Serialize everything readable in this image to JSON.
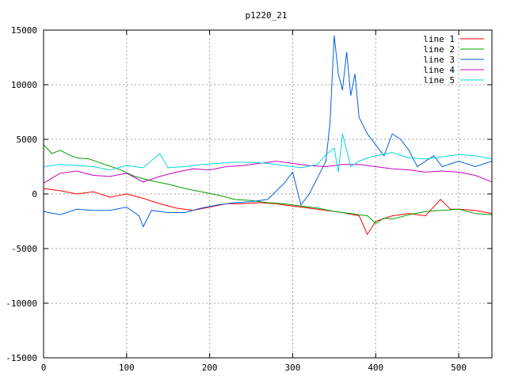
{
  "chart_data": {
    "type": "line",
    "title": "p1220_21",
    "xlabel": "",
    "ylabel": "",
    "xlim": [
      0,
      540
    ],
    "ylim": [
      -15000,
      15000
    ],
    "x_ticks": [
      0,
      100,
      200,
      300,
      400,
      500
    ],
    "y_ticks": [
      -15000,
      -10000,
      -5000,
      0,
      5000,
      10000,
      15000
    ],
    "x_tick_labels": [
      "0",
      "100",
      "200",
      "300",
      "400",
      "500"
    ],
    "y_tick_labels": [
      "-15000",
      "-10000",
      "-5000",
      "0",
      "5000",
      "10000",
      "15000"
    ],
    "grid": true,
    "legend_position": "top-right",
    "series": [
      {
        "name": "line 1",
        "color": "#ff0000",
        "points": [
          [
            0,
            500
          ],
          [
            20,
            300
          ],
          [
            40,
            0
          ],
          [
            60,
            200
          ],
          [
            80,
            -300
          ],
          [
            100,
            0
          ],
          [
            120,
            -400
          ],
          [
            140,
            -900
          ],
          [
            160,
            -1300
          ],
          [
            180,
            -1500
          ],
          [
            200,
            -1200
          ],
          [
            220,
            -900
          ],
          [
            240,
            -900
          ],
          [
            260,
            -800
          ],
          [
            280,
            -900
          ],
          [
            300,
            -1100
          ],
          [
            320,
            -1300
          ],
          [
            340,
            -1500
          ],
          [
            360,
            -1700
          ],
          [
            380,
            -2000
          ],
          [
            390,
            -3700
          ],
          [
            400,
            -2500
          ],
          [
            420,
            -2000
          ],
          [
            440,
            -1800
          ],
          [
            460,
            -2000
          ],
          [
            478,
            -500
          ],
          [
            490,
            -1400
          ],
          [
            500,
            -1400
          ],
          [
            520,
            -1500
          ],
          [
            540,
            -1800
          ]
        ]
      },
      {
        "name": "line 2",
        "color": "#00a000",
        "points": [
          [
            0,
            4500
          ],
          [
            10,
            3700
          ],
          [
            20,
            4000
          ],
          [
            30,
            3600
          ],
          [
            40,
            3300
          ],
          [
            55,
            3200
          ],
          [
            70,
            2800
          ],
          [
            90,
            2300
          ],
          [
            110,
            1600
          ],
          [
            130,
            1200
          ],
          [
            150,
            900
          ],
          [
            170,
            500
          ],
          [
            190,
            200
          ],
          [
            210,
            -100
          ],
          [
            230,
            -500
          ],
          [
            250,
            -600
          ],
          [
            270,
            -800
          ],
          [
            290,
            -900
          ],
          [
            310,
            -1100
          ],
          [
            330,
            -1300
          ],
          [
            350,
            -1600
          ],
          [
            370,
            -1800
          ],
          [
            390,
            -2000
          ],
          [
            400,
            -2700
          ],
          [
            410,
            -2200
          ],
          [
            420,
            -2300
          ],
          [
            440,
            -1900
          ],
          [
            460,
            -1600
          ],
          [
            480,
            -1500
          ],
          [
            500,
            -1400
          ],
          [
            520,
            -1800
          ],
          [
            540,
            -1900
          ]
        ]
      },
      {
        "name": "line 3",
        "color": "#0060e0",
        "points": [
          [
            0,
            -1600
          ],
          [
            20,
            -1900
          ],
          [
            40,
            -1400
          ],
          [
            60,
            -1500
          ],
          [
            80,
            -1500
          ],
          [
            100,
            -1200
          ],
          [
            115,
            -2000
          ],
          [
            120,
            -3000
          ],
          [
            130,
            -1500
          ],
          [
            150,
            -1700
          ],
          [
            170,
            -1700
          ],
          [
            190,
            -1300
          ],
          [
            210,
            -1000
          ],
          [
            230,
            -800
          ],
          [
            250,
            -700
          ],
          [
            270,
            -500
          ],
          [
            290,
            1000
          ],
          [
            300,
            2000
          ],
          [
            310,
            -1000
          ],
          [
            320,
            0
          ],
          [
            330,
            1500
          ],
          [
            340,
            3000
          ],
          [
            345,
            6500
          ],
          [
            350,
            14500
          ],
          [
            355,
            11000
          ],
          [
            360,
            9500
          ],
          [
            365,
            13000
          ],
          [
            370,
            9000
          ],
          [
            375,
            11000
          ],
          [
            380,
            7000
          ],
          [
            390,
            5500
          ],
          [
            400,
            4500
          ],
          [
            410,
            3500
          ],
          [
            420,
            5500
          ],
          [
            430,
            5000
          ],
          [
            440,
            4000
          ],
          [
            450,
            2500
          ],
          [
            460,
            3000
          ],
          [
            470,
            3500
          ],
          [
            480,
            2500
          ],
          [
            500,
            3000
          ],
          [
            520,
            2500
          ],
          [
            540,
            3000
          ]
        ]
      },
      {
        "name": "line 4",
        "color": "#c000c0",
        "points": [
          [
            0,
            1000
          ],
          [
            20,
            1900
          ],
          [
            40,
            2100
          ],
          [
            60,
            1700
          ],
          [
            80,
            1600
          ],
          [
            100,
            1900
          ],
          [
            120,
            1100
          ],
          [
            140,
            1600
          ],
          [
            160,
            2000
          ],
          [
            180,
            2300
          ],
          [
            200,
            2200
          ],
          [
            220,
            2500
          ],
          [
            240,
            2600
          ],
          [
            260,
            2800
          ],
          [
            280,
            3000
          ],
          [
            300,
            2800
          ],
          [
            320,
            2600
          ],
          [
            340,
            2500
          ],
          [
            360,
            2700
          ],
          [
            380,
            2700
          ],
          [
            400,
            2500
          ],
          [
            420,
            2300
          ],
          [
            440,
            2200
          ],
          [
            460,
            2000
          ],
          [
            480,
            2100
          ],
          [
            500,
            2000
          ],
          [
            520,
            1700
          ],
          [
            540,
            1100
          ]
        ]
      },
      {
        "name": "line 5",
        "color": "#00d8d8",
        "points": [
          [
            0,
            2500
          ],
          [
            20,
            2700
          ],
          [
            40,
            2600
          ],
          [
            60,
            2500
          ],
          [
            80,
            2200
          ],
          [
            100,
            2600
          ],
          [
            120,
            2400
          ],
          [
            140,
            3700
          ],
          [
            150,
            2400
          ],
          [
            170,
            2500
          ],
          [
            190,
            2700
          ],
          [
            210,
            2800
          ],
          [
            230,
            2900
          ],
          [
            250,
            2900
          ],
          [
            270,
            2800
          ],
          [
            290,
            2600
          ],
          [
            310,
            2400
          ],
          [
            330,
            2700
          ],
          [
            340,
            3600
          ],
          [
            350,
            4200
          ],
          [
            355,
            2000
          ],
          [
            360,
            5500
          ],
          [
            370,
            2500
          ],
          [
            380,
            3000
          ],
          [
            390,
            3300
          ],
          [
            400,
            3500
          ],
          [
            420,
            3800
          ],
          [
            440,
            3300
          ],
          [
            460,
            3200
          ],
          [
            480,
            3400
          ],
          [
            500,
            3600
          ],
          [
            520,
            3500
          ],
          [
            540,
            3200
          ]
        ]
      }
    ]
  }
}
